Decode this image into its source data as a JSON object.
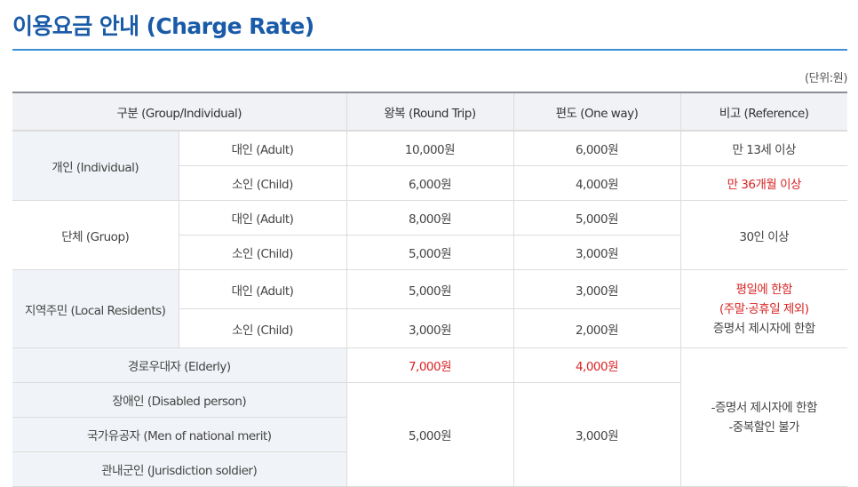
{
  "title": "이용요금 안내 (Charge Rate)",
  "unit_note": "(단위:원)",
  "table": {
    "headers": {
      "group": "구분 (Group/Individual)",
      "round_trip": "왕복 (Round Trip)",
      "one_way": "편도 (One way)",
      "reference": "비고 (Reference)"
    },
    "individual": {
      "label": "개인 (Individual)",
      "adult": {
        "label": "대인 (Adult)",
        "round_trip": "10,000원",
        "one_way": "6,000원",
        "reference": "만 13세 이상"
      },
      "child": {
        "label": "소인 (Child)",
        "round_trip": "6,000원",
        "one_way": "4,000원",
        "reference": "만 36개월 이상"
      }
    },
    "group": {
      "label": "단체 (Gruop)",
      "adult": {
        "label": "대인 (Adult)",
        "round_trip": "8,000원",
        "one_way": "5,000원"
      },
      "child": {
        "label": "소인 (Child)",
        "round_trip": "5,000원",
        "one_way": "3,000원"
      },
      "reference": "30인 이상"
    },
    "residents": {
      "label": "지역주민 (Local Residents)",
      "adult": {
        "label": "대인 (Adult)",
        "round_trip": "5,000원",
        "one_way": "3,000원"
      },
      "child": {
        "label": "소인 (Child)",
        "round_trip": "3,000원",
        "one_way": "2,000원"
      },
      "reference_line1": "평일에 한함",
      "reference_line2": "(주말·공휴일 제외)",
      "reference_line3": "증명서 제시자에 한함"
    },
    "elderly": {
      "label": "경로우대자 (Elderly)",
      "round_trip": "7,000원",
      "one_way": "4,000원"
    },
    "disabled": {
      "label": "장애인 (Disabled person)"
    },
    "merit": {
      "label": "국가유공자 (Men of national merit)"
    },
    "soldier": {
      "label": "관내군인 (Jurisdiction soldier)"
    },
    "special_round_trip": "5,000원",
    "special_one_way": "3,000원",
    "special_reference_line1": "-증명서 제시자에 한함",
    "special_reference_line2": "-중복할인 불가"
  },
  "colors": {
    "title": "#1a5ba8",
    "title_rule": "#3d8fd6",
    "header_bg": "#f0f2f5",
    "shaded_row_bg": "#f0f3f7",
    "highlight_red": "#d82424"
  }
}
